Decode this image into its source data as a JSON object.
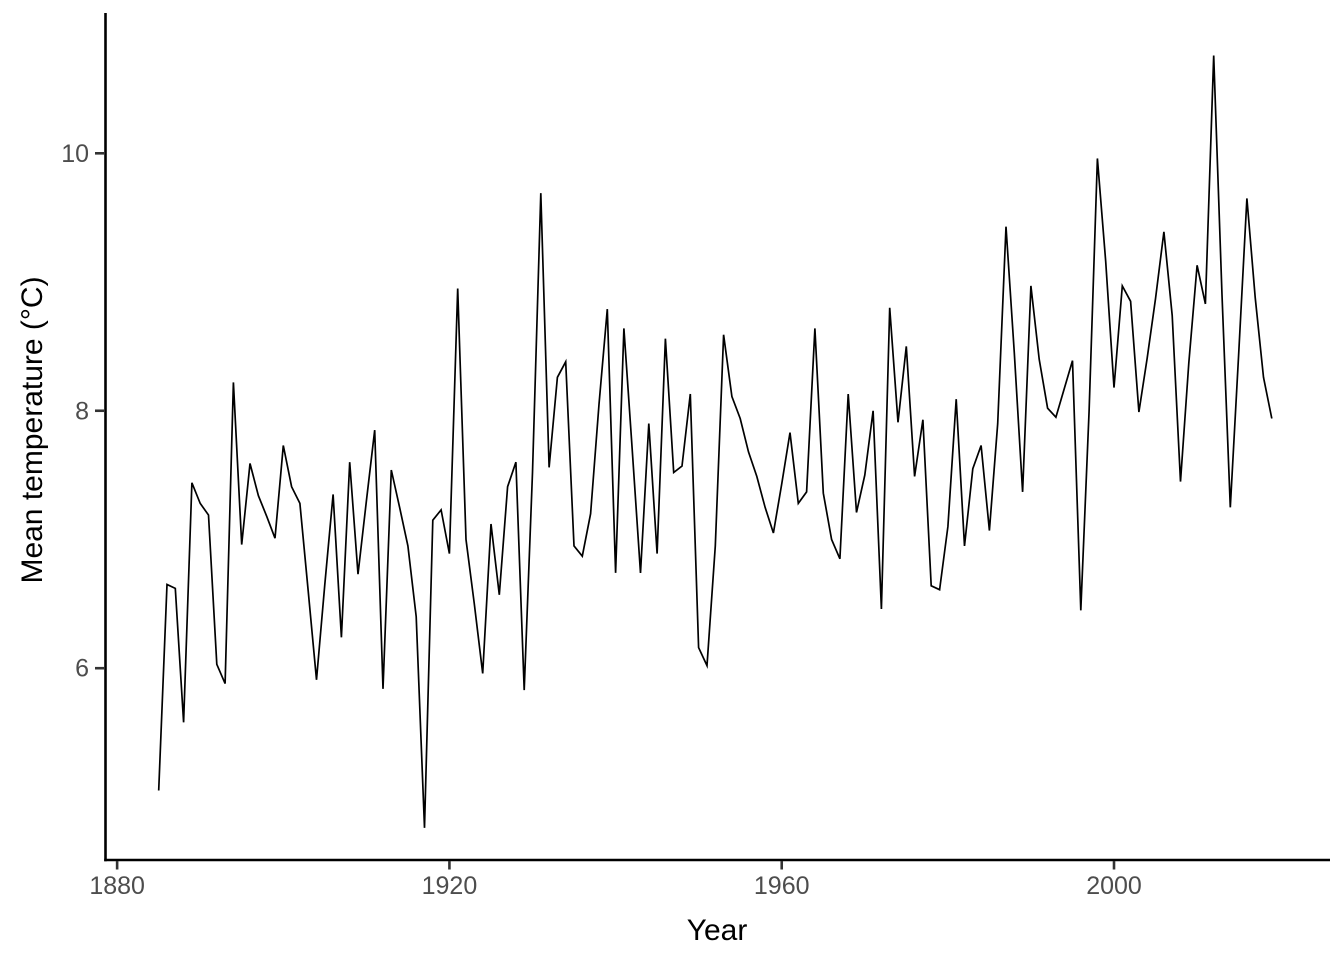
{
  "figure": {
    "background_color": "#ffffff",
    "series_color": "#000000",
    "axis_line_color": "#000000",
    "tick_mark_color": "#333333",
    "tick_label_color": "#4d4d4d",
    "axis_title_color": "#000000"
  },
  "chart_data": {
    "type": "line",
    "title": "",
    "xlabel": "Year",
    "ylabel": "Mean temperature (°C)",
    "legend": null,
    "grid": false,
    "xlim": [
      1878.6,
      2026.0
    ],
    "ylim": [
      4.51,
      11.09
    ],
    "x_ticks": [
      1880,
      1920,
      1960,
      2000
    ],
    "x_tick_labels": [
      "1880",
      "1920",
      "1960",
      "2000"
    ],
    "y_ticks": [
      6,
      8,
      10
    ],
    "y_tick_labels": [
      "6",
      "8",
      "10"
    ],
    "x_range": [
      1885,
      2019
    ],
    "x_step": 1,
    "values": [
      5.05,
      6.65,
      6.62,
      5.58,
      7.44,
      7.28,
      7.19,
      6.03,
      5.88,
      8.22,
      6.96,
      7.59,
      7.34,
      7.18,
      7.01,
      7.73,
      7.41,
      7.28,
      6.6,
      5.91,
      6.65,
      7.35,
      6.24,
      7.6,
      6.73,
      7.3,
      7.85,
      5.84,
      7.54,
      7.25,
      6.95,
      6.4,
      4.76,
      7.15,
      7.23,
      6.89,
      8.95,
      7.0,
      6.5,
      5.96,
      7.12,
      6.57,
      7.41,
      7.6,
      5.83,
      7.52,
      9.69,
      7.56,
      8.26,
      8.38,
      6.95,
      6.87,
      7.2,
      8.05,
      8.79,
      6.74,
      8.64,
      7.7,
      6.74,
      7.9,
      6.89,
      8.56,
      7.52,
      7.57,
      8.13,
      6.16,
      6.02,
      6.95,
      8.59,
      8.11,
      7.94,
      7.68,
      7.49,
      7.25,
      7.05,
      7.43,
      7.83,
      7.28,
      7.37,
      8.64,
      7.36,
      7.0,
      6.85,
      8.13,
      7.21,
      7.5,
      8.0,
      6.46,
      8.8,
      7.91,
      8.5,
      7.49,
      7.93,
      6.64,
      6.61,
      7.1,
      8.09,
      6.95,
      7.55,
      7.73,
      7.07,
      7.9,
      9.43,
      8.45,
      7.37,
      8.97,
      8.4,
      8.02,
      7.95,
      8.17,
      8.39,
      6.45,
      8.0,
      9.96,
      9.16,
      8.18,
      8.97,
      8.85,
      7.99,
      8.41,
      8.87,
      9.39,
      8.74,
      7.45,
      8.37,
      9.13,
      8.83,
      10.76,
      8.9,
      7.25,
      8.43,
      9.65,
      8.88,
      8.26,
      7.94
    ]
  }
}
